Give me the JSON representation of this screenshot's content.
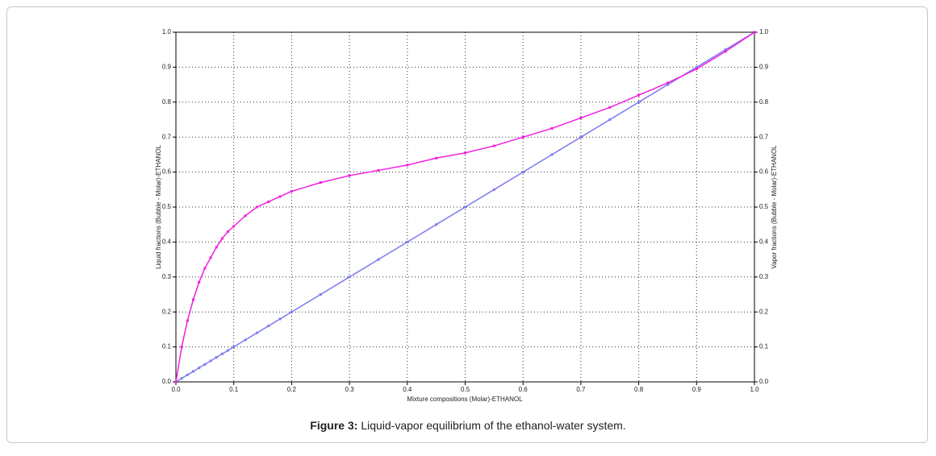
{
  "chart_data": {
    "type": "line",
    "x": [
      0,
      0.01,
      0.02,
      0.03,
      0.04,
      0.05,
      0.06,
      0.07,
      0.08,
      0.09,
      0.1,
      0.12,
      0.14,
      0.16,
      0.18,
      0.2,
      0.25,
      0.3,
      0.35,
      0.4,
      0.45,
      0.5,
      0.55,
      0.6,
      0.65,
      0.7,
      0.75,
      0.8,
      0.85,
      0.9,
      0.95,
      1
    ],
    "series": [
      {
        "color": "#7b7bf0",
        "values": [
          0,
          0.01,
          0.02,
          0.03,
          0.04,
          0.05,
          0.06,
          0.07,
          0.08,
          0.09,
          0.1,
          0.12,
          0.14,
          0.16,
          0.18,
          0.2,
          0.25,
          0.3,
          0.35,
          0.4,
          0.45,
          0.5,
          0.55,
          0.6,
          0.65,
          0.7,
          0.75,
          0.8,
          0.85,
          0.9,
          0.95,
          1
        ]
      },
      {
        "color": "#f020e0",
        "axis": "y2",
        "values": [
          0,
          0.1,
          0.175,
          0.235,
          0.285,
          0.325,
          0.355,
          0.385,
          0.41,
          0.43,
          0.445,
          0.475,
          0.5,
          0.515,
          0.53,
          0.545,
          0.57,
          0.59,
          0.605,
          0.62,
          0.64,
          0.655,
          0.675,
          0.7,
          0.725,
          0.755,
          0.785,
          0.82,
          0.855,
          0.895,
          0.945,
          1
        ]
      }
    ],
    "xlabel": "Mixture compositions (Molar)-ETHANOL",
    "ylabel": "Liquid fractions (Bubble - Molar)-ETHANOL",
    "y2label": "Vapor fractions (Bubble - Molar)-ETHANOL",
    "xlim": [
      0,
      1
    ],
    "ylim": [
      0,
      1
    ],
    "y2lim": [
      0,
      1
    ],
    "xticks": [
      {
        "value": 0,
        "label": "0.0"
      },
      0.1,
      0.2,
      0.3,
      0.4,
      0.5,
      0.6,
      0.7,
      0.8,
      0.9,
      {
        "value": 1,
        "label": "1.0"
      }
    ],
    "yticks": [
      {
        "value": 0,
        "label": "0.0"
      },
      0.1,
      0.2,
      0.3,
      0.4,
      0.5,
      0.6,
      0.7,
      0.8,
      0.9,
      {
        "value": 1,
        "label": "1.0"
      }
    ],
    "y2ticks": [
      {
        "value": 0,
        "label": "0.0"
      },
      0.1,
      0.2,
      0.3,
      0.4,
      0.5,
      0.6,
      0.7,
      0.8,
      0.9,
      {
        "value": 1,
        "label": "1.0"
      }
    ],
    "grid": true
  },
  "caption": {
    "label": "Figure 3:",
    "text": "Liquid-vapor equilibrium of the ethanol-water system."
  }
}
